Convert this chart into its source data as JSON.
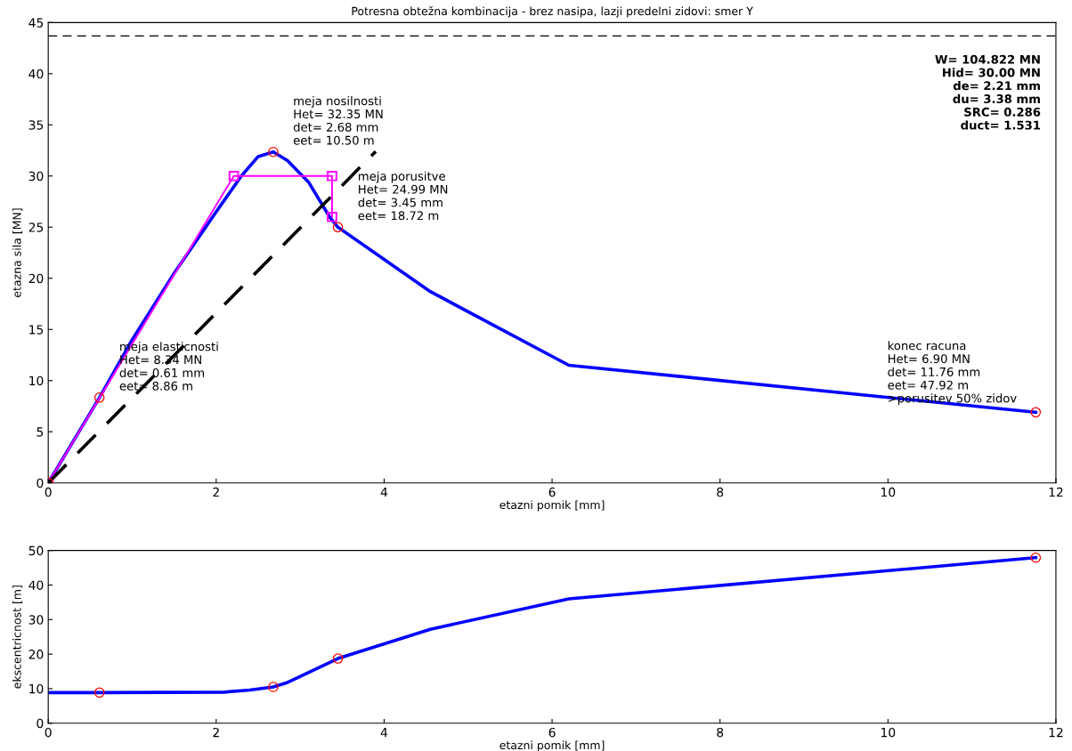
{
  "chart_data": [
    {
      "type": "line",
      "title": "Potresna obtežna kombinacija - brez nasipa, lazji predelni zidovi: smer Y",
      "xlabel": "etazni pomik [mm]",
      "ylabel": "etazna sila [MN]",
      "xlim": [
        0,
        12
      ],
      "xticks": [
        0,
        2,
        4,
        6,
        8,
        10,
        12
      ],
      "ylim": [
        0,
        45
      ],
      "yticks": [
        0,
        5,
        10,
        15,
        20,
        25,
        30,
        35,
        40,
        45
      ],
      "grid": false,
      "legend": false,
      "series": [
        {
          "type": "line",
          "color": "#0000ff",
          "x": [
            0,
            0.61,
            1.0,
            1.5,
            2.0,
            2.3,
            2.5,
            2.68,
            2.85,
            3.1,
            3.35,
            3.45,
            4.55,
            6.2,
            11.76
          ],
          "values": [
            0,
            8.34,
            14.0,
            20.5,
            26.5,
            30.0,
            31.9,
            32.35,
            31.5,
            29.4,
            26.0,
            24.99,
            18.7,
            11.5,
            6.9
          ]
        },
        {
          "type": "line",
          "color": "#ff00ff",
          "marker": "square",
          "x": [
            0,
            2.21,
            3.38,
            3.38
          ],
          "values": [
            0,
            30,
            30,
            26
          ]
        },
        {
          "type": "line",
          "color": "#000000",
          "line_style": "dashed",
          "x": [
            0,
            3.9
          ],
          "values": [
            0,
            32.4
          ]
        },
        {
          "type": "scatter",
          "color": "#ff0000",
          "marker": "circle",
          "x": [
            0,
            0.61,
            2.68,
            3.45,
            11.76
          ],
          "values": [
            0,
            8.34,
            32.35,
            24.99,
            6.9
          ]
        }
      ],
      "ref_lines": [
        {
          "axis": "y",
          "value": 43.7,
          "color": "#000000",
          "line_style": "dashed"
        }
      ],
      "annotations": [
        {
          "text": "meja elasticnosti\nHet= 8.34 MN\ndet= 0.61 mm\neet= 8.86 m",
          "x": 0.61,
          "y": 8.34
        },
        {
          "text": "meja nosilnosti\nHet= 32.35 MN\ndet= 2.68 mm\neet= 10.50 m",
          "x": 2.68,
          "y": 32.35
        },
        {
          "text": "meja porusitve\nHet= 24.99 MN\ndet= 3.45 mm\neet= 18.72 m",
          "x": 3.45,
          "y": 24.99
        },
        {
          "text": "konec racuna\nHet= 6.90 MN\ndet= 11.76 mm\neet= 47.92 m\n>porusitev 50% zidov",
          "x": 11.76,
          "y": 6.9
        },
        "W= 104.822 MN\nHid= 30.00 MN\nde= 2.21 mm\ndu= 3.38 mm\nSRC= 0.286\nduct= 1.531"
      ]
    },
    {
      "type": "line",
      "xlabel": "etazni pomik [mm]",
      "ylabel": "ekscentricnost [m]",
      "xlim": [
        0,
        12
      ],
      "xticks": [
        0,
        2,
        4,
        6,
        8,
        10,
        12
      ],
      "ylim": [
        0,
        50
      ],
      "yticks": [
        0,
        10,
        20,
        30,
        40,
        50
      ],
      "grid": false,
      "legend": false,
      "series": [
        {
          "type": "line",
          "color": "#0000ff",
          "x": [
            0,
            0.61,
            2.1,
            2.4,
            2.68,
            2.85,
            3.45,
            4.55,
            6.2,
            11.76
          ],
          "values": [
            8.86,
            8.86,
            9.0,
            9.6,
            10.5,
            11.8,
            18.72,
            27.2,
            36.0,
            47.92
          ]
        },
        {
          "type": "scatter",
          "color": "#ff0000",
          "marker": "circle",
          "x": [
            0.61,
            2.68,
            3.45,
            11.76
          ],
          "values": [
            8.86,
            10.5,
            18.72,
            47.92
          ]
        }
      ]
    }
  ]
}
